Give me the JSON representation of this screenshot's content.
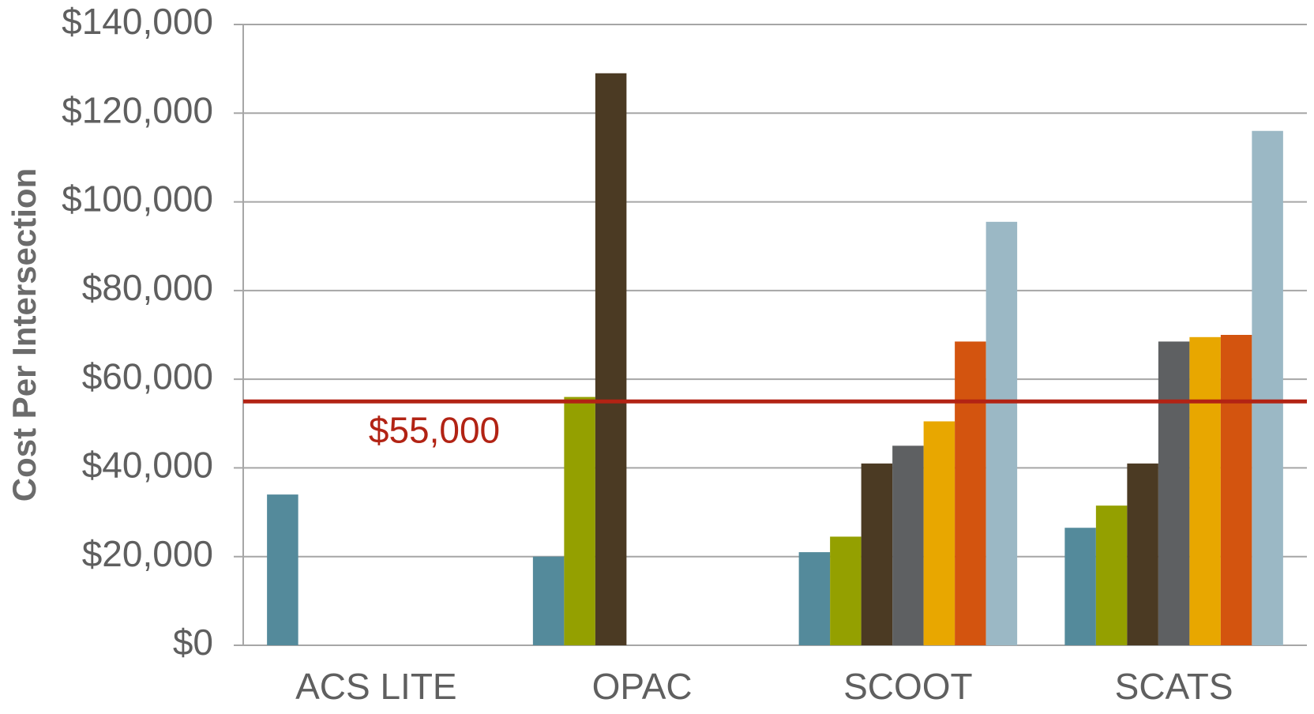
{
  "chart_data": {
    "type": "bar",
    "y_axis_label": "Cost Per Intersection",
    "categories": [
      "ACS LITE",
      "OPAC",
      "SCOOT",
      "SCATS"
    ],
    "series": [
      {
        "color": "#548a9b",
        "values": [
          34000,
          20000,
          21000,
          26500
        ]
      },
      {
        "color": "#94a000",
        "values": [
          null,
          56000,
          24500,
          31500
        ]
      },
      {
        "color": "#4b3a23",
        "values": [
          null,
          129000,
          41000,
          41000
        ]
      },
      {
        "color": "#5e6062",
        "values": [
          null,
          null,
          45000,
          68500
        ]
      },
      {
        "color": "#e8a700",
        "values": [
          null,
          null,
          50500,
          69500
        ]
      },
      {
        "color": "#d3540f",
        "values": [
          null,
          null,
          68500,
          70000
        ]
      },
      {
        "color": "#9bb8c5",
        "values": [
          null,
          null,
          95500,
          116000
        ]
      }
    ],
    "ylim": [
      0,
      140000
    ],
    "yticks": [
      {
        "value": 0,
        "label": "$0"
      },
      {
        "value": 20000,
        "label": "$20,000"
      },
      {
        "value": 40000,
        "label": "$40,000"
      },
      {
        "value": 60000,
        "label": "$60,000"
      },
      {
        "value": 80000,
        "label": "$80,000"
      },
      {
        "value": 100000,
        "label": "$100,000"
      },
      {
        "value": 120000,
        "label": "$120,000"
      },
      {
        "value": 140000,
        "label": "$140,000"
      }
    ],
    "grid": true,
    "reference_line": {
      "value": 55000,
      "label": "$55,000",
      "color": "#b22314"
    }
  }
}
